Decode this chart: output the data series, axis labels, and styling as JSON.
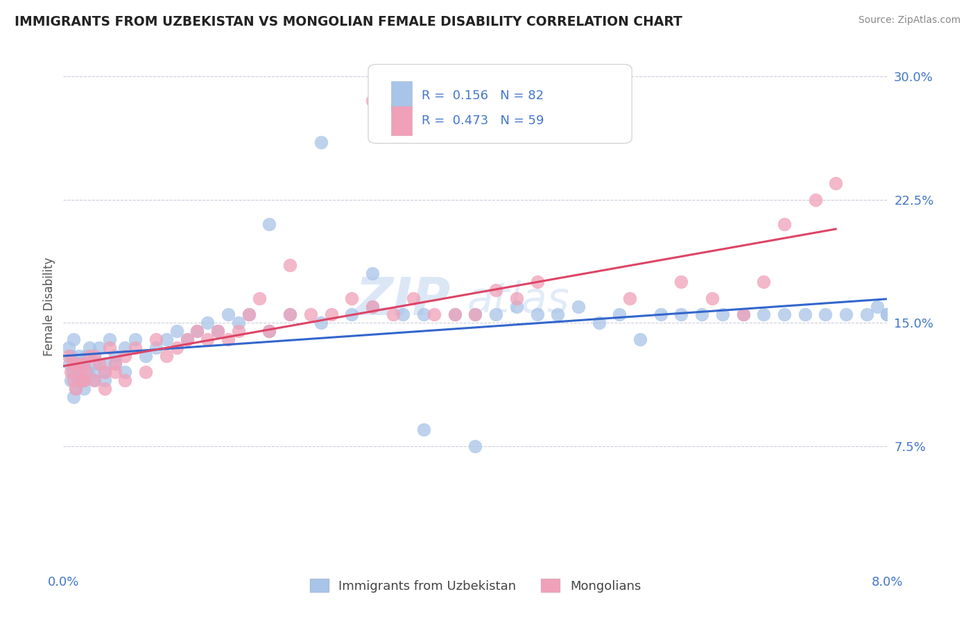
{
  "title": "IMMIGRANTS FROM UZBEKISTAN VS MONGOLIAN FEMALE DISABILITY CORRELATION CHART",
  "source": "Source: ZipAtlas.com",
  "ylabel": "Female Disability",
  "yticks": [
    0.0,
    0.075,
    0.15,
    0.225,
    0.3
  ],
  "ytick_labels": [
    "",
    "7.5%",
    "15.0%",
    "22.5%",
    "30.0%"
  ],
  "xlim": [
    0.0,
    0.08
  ],
  "ylim": [
    0.0,
    0.32
  ],
  "legend_label1": "Immigrants from Uzbekistan",
  "legend_label2": "Mongolians",
  "R1": "0.156",
  "N1": "82",
  "R2": "0.473",
  "N2": "59",
  "color1": "#a8c4e8",
  "color2": "#f0a0b8",
  "trend_color1": "#3366cc",
  "trend_color2": "#dd4466",
  "watermark_zip": "ZIP",
  "watermark_atlas": "atlas",
  "background_color": "#ffffff",
  "title_color": "#222222",
  "axis_color": "#4477cc",
  "grid_color": "#ccccdd",
  "uzbek_x": [
    0.0005,
    0.0006,
    0.0007,
    0.0008,
    0.0009,
    0.001,
    0.001,
    0.0011,
    0.0012,
    0.0013,
    0.0014,
    0.0015,
    0.0016,
    0.0017,
    0.0018,
    0.002,
    0.002,
    0.002,
    0.0022,
    0.0024,
    0.0025,
    0.003,
    0.003,
    0.003,
    0.003,
    0.0035,
    0.004,
    0.004,
    0.004,
    0.0045,
    0.005,
    0.005,
    0.006,
    0.006,
    0.007,
    0.008,
    0.009,
    0.01,
    0.011,
    0.012,
    0.013,
    0.014,
    0.015,
    0.016,
    0.017,
    0.018,
    0.02,
    0.022,
    0.025,
    0.028,
    0.03,
    0.033,
    0.035,
    0.038,
    0.04,
    0.042,
    0.044,
    0.046,
    0.048,
    0.05,
    0.052,
    0.054,
    0.056,
    0.058,
    0.06,
    0.062,
    0.064,
    0.066,
    0.068,
    0.07,
    0.072,
    0.074,
    0.076,
    0.078,
    0.079,
    0.08,
    0.08,
    0.02,
    0.025,
    0.03,
    0.035,
    0.04
  ],
  "uzbek_y": [
    0.135,
    0.125,
    0.115,
    0.13,
    0.12,
    0.14,
    0.105,
    0.12,
    0.11,
    0.125,
    0.115,
    0.13,
    0.115,
    0.12,
    0.125,
    0.125,
    0.115,
    0.11,
    0.13,
    0.12,
    0.135,
    0.125,
    0.115,
    0.13,
    0.12,
    0.135,
    0.125,
    0.12,
    0.115,
    0.14,
    0.13,
    0.125,
    0.135,
    0.12,
    0.14,
    0.13,
    0.135,
    0.14,
    0.145,
    0.14,
    0.145,
    0.15,
    0.145,
    0.155,
    0.15,
    0.155,
    0.145,
    0.155,
    0.15,
    0.155,
    0.16,
    0.155,
    0.155,
    0.155,
    0.155,
    0.155,
    0.16,
    0.155,
    0.155,
    0.16,
    0.15,
    0.155,
    0.14,
    0.155,
    0.155,
    0.155,
    0.155,
    0.155,
    0.155,
    0.155,
    0.155,
    0.155,
    0.155,
    0.155,
    0.16,
    0.155,
    0.155,
    0.21,
    0.26,
    0.18,
    0.085,
    0.075
  ],
  "mongol_x": [
    0.0005,
    0.0007,
    0.0009,
    0.001,
    0.0012,
    0.0014,
    0.0016,
    0.0018,
    0.002,
    0.002,
    0.0022,
    0.0025,
    0.003,
    0.003,
    0.0035,
    0.004,
    0.004,
    0.0045,
    0.005,
    0.005,
    0.006,
    0.006,
    0.007,
    0.008,
    0.009,
    0.01,
    0.011,
    0.012,
    0.013,
    0.014,
    0.015,
    0.016,
    0.017,
    0.018,
    0.019,
    0.02,
    0.022,
    0.024,
    0.026,
    0.028,
    0.03,
    0.032,
    0.034,
    0.036,
    0.038,
    0.04,
    0.042,
    0.044,
    0.046,
    0.055,
    0.06,
    0.063,
    0.066,
    0.068,
    0.07,
    0.073,
    0.075,
    0.022,
    0.03
  ],
  "mongol_y": [
    0.13,
    0.12,
    0.125,
    0.115,
    0.11,
    0.125,
    0.12,
    0.115,
    0.125,
    0.115,
    0.12,
    0.13,
    0.115,
    0.13,
    0.125,
    0.12,
    0.11,
    0.135,
    0.125,
    0.12,
    0.13,
    0.115,
    0.135,
    0.12,
    0.14,
    0.13,
    0.135,
    0.14,
    0.145,
    0.14,
    0.145,
    0.14,
    0.145,
    0.155,
    0.165,
    0.145,
    0.155,
    0.155,
    0.155,
    0.165,
    0.16,
    0.155,
    0.165,
    0.155,
    0.155,
    0.155,
    0.17,
    0.165,
    0.175,
    0.165,
    0.175,
    0.165,
    0.155,
    0.175,
    0.21,
    0.225,
    0.235,
    0.185,
    0.285
  ]
}
